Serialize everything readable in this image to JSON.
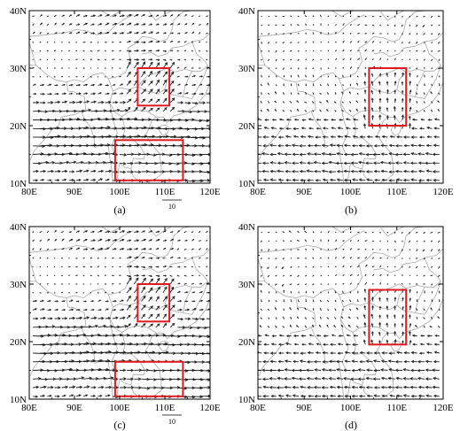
{
  "figure": {
    "panels": [
      {
        "id": "a",
        "label": "(a)",
        "reference_vector_label": "10",
        "has_reference_vector": true,
        "wind_pattern": "strong-westerly-tropics",
        "highlight_boxes": [
          {
            "lon": [
              104,
              111
            ],
            "lat": [
              23.5,
              30
            ]
          },
          {
            "lon": [
              99,
              114
            ],
            "lat": [
              10.5,
              17.5
            ]
          }
        ]
      },
      {
        "id": "b",
        "label": "(b)",
        "reference_vector_label": "",
        "has_reference_vector": false,
        "wind_pattern": "weak-easterly-southerly",
        "highlight_boxes": [
          {
            "lon": [
              104,
              112
            ],
            "lat": [
              20,
              30
            ]
          }
        ]
      },
      {
        "id": "c",
        "label": "(c)",
        "reference_vector_label": "10",
        "has_reference_vector": true,
        "wind_pattern": "strong-westerly-tropics",
        "highlight_boxes": [
          {
            "lon": [
              104,
              111
            ],
            "lat": [
              23.5,
              30
            ]
          },
          {
            "lon": [
              99,
              114
            ],
            "lat": [
              10.5,
              16.5
            ]
          }
        ]
      },
      {
        "id": "d",
        "label": "(d)",
        "reference_vector_label": "",
        "has_reference_vector": false,
        "wind_pattern": "weak-easterly-southerly",
        "highlight_boxes": [
          {
            "lon": [
              104,
              112
            ],
            "lat": [
              19.5,
              29
            ]
          }
        ]
      }
    ],
    "x_ticks": [
      "80E",
      "90E",
      "100E",
      "110E",
      "120E"
    ],
    "x_tick_values": [
      80,
      90,
      100,
      110,
      120
    ],
    "y_ticks": [
      "10N",
      "20N",
      "30N",
      "40N"
    ],
    "y_tick_values": [
      10,
      20,
      30,
      40
    ],
    "lon_range": [
      80,
      120
    ],
    "lat_range": [
      10,
      40
    ],
    "colors": {
      "vectors": "#1a1a1a",
      "coastline": "#a8a8a8",
      "highlight_box": "#e0191f",
      "frame": "#000000"
    }
  }
}
